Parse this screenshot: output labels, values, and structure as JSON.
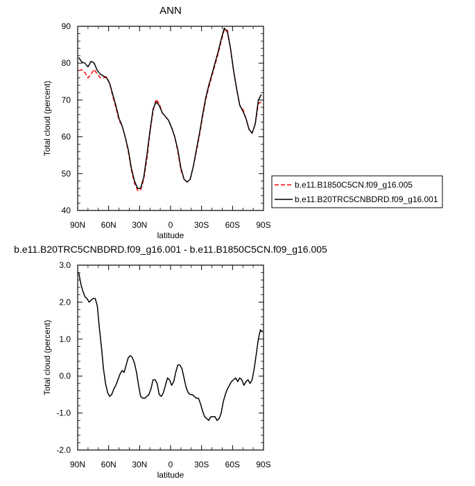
{
  "chart_data": [
    {
      "type": "line",
      "title": "ANN",
      "xlabel": "latitude",
      "ylabel": "Total cloud (percent)",
      "xlim": [
        90,
        -90
      ],
      "ylim": [
        40,
        90
      ],
      "x_tick_values": [
        90,
        60,
        30,
        0,
        -30,
        -60,
        -90
      ],
      "x_tick_labels": [
        "90N",
        "60N",
        "30N",
        "0",
        "30S",
        "60S",
        "90S"
      ],
      "y_tick_values": [
        40,
        50,
        60,
        70,
        80,
        90
      ],
      "y_tick_labels": [
        "40",
        "50",
        "60",
        "70",
        "80",
        "90"
      ],
      "legend_position": "right",
      "series": [
        {
          "name": "b.e11.B1850C5CN.f09_g16.005",
          "color": "#ff0000",
          "dash": "dashed",
          "x": [
            89,
            86,
            83,
            80,
            77,
            74,
            71,
            68,
            65,
            62,
            59,
            56,
            53,
            50,
            47,
            44,
            41,
            38,
            35,
            32,
            29,
            26,
            23,
            20,
            17,
            14,
            11,
            8,
            5,
            2,
            -1,
            -4,
            -7,
            -10,
            -13,
            -16,
            -19,
            -22,
            -25,
            -28,
            -31,
            -34,
            -37,
            -40,
            -43,
            -46,
            -49,
            -52,
            -55,
            -58,
            -61,
            -64,
            -67,
            -70,
            -73,
            -76,
            -79,
            -82,
            -85,
            -88
          ],
          "y": [
            78,
            78.2,
            77.5,
            76,
            77,
            78.3,
            77,
            76,
            76,
            76.3,
            74.5,
            71,
            68,
            64.5,
            63,
            60,
            56,
            51,
            47.5,
            45.5,
            45.5,
            48.5,
            54,
            61,
            67,
            70.2,
            69,
            66.5,
            65.5,
            64.5,
            62.5,
            60,
            56,
            51,
            48.5,
            47.7,
            48.5,
            52,
            56,
            60.5,
            65.5,
            70,
            73.5,
            76.5,
            79.5,
            82.5,
            86,
            89,
            89,
            84,
            78,
            73,
            68.5,
            67.5,
            65,
            62,
            61,
            63.5,
            69,
            69.5
          ]
        },
        {
          "name": "b.e11.B20TRC5CNBDRD.f09_g16.001",
          "color": "#000000",
          "dash": "solid",
          "x": [
            89,
            86,
            83,
            80,
            77,
            74,
            71,
            68,
            65,
            62,
            59,
            56,
            53,
            50,
            47,
            44,
            41,
            38,
            35,
            32,
            29,
            26,
            23,
            20,
            17,
            14,
            11,
            8,
            5,
            2,
            -1,
            -4,
            -7,
            -10,
            -13,
            -16,
            -19,
            -22,
            -25,
            -28,
            -31,
            -34,
            -37,
            -40,
            -43,
            -46,
            -49,
            -52,
            -55,
            -58,
            -61,
            -64,
            -67,
            -70,
            -73,
            -76,
            -79,
            -82,
            -85,
            -88
          ],
          "y": [
            81.5,
            80.3,
            80,
            79,
            80.5,
            80,
            78,
            77,
            76.5,
            76,
            74.5,
            71.5,
            68.5,
            65,
            63,
            60,
            56.5,
            51.5,
            48,
            46,
            46,
            49,
            55,
            61.5,
            67.5,
            69.5,
            68.5,
            66.5,
            65.5,
            64.5,
            62.5,
            60,
            56.5,
            51.5,
            48.5,
            47.7,
            48.5,
            52,
            56.5,
            61,
            66,
            70.5,
            74,
            77,
            80,
            83,
            86.5,
            89.5,
            88.5,
            84,
            78,
            73,
            68.5,
            67,
            65,
            62,
            61,
            63.5,
            70,
            71.5
          ]
        }
      ]
    },
    {
      "type": "line",
      "title": "b.e11.B20TRC5CNBDRD.f09_g16.001 - b.e11.B1850C5CN.f09_g16.005",
      "xlabel": "latitude",
      "ylabel": "Total cloud (percent)",
      "xlim": [
        90,
        -90
      ],
      "ylim": [
        -2.0,
        3.0
      ],
      "x_tick_values": [
        90,
        60,
        30,
        0,
        -30,
        -60,
        -90
      ],
      "x_tick_labels": [
        "90N",
        "60N",
        "30N",
        "0",
        "30S",
        "60S",
        "90S"
      ],
      "y_tick_values": [
        -2,
        -1,
        0,
        1,
        2,
        3
      ],
      "y_tick_labels": [
        "-2.0",
        "-1.0",
        "0.0",
        "1.0",
        "2.0",
        "3.0"
      ],
      "series": [
        {
          "color": "#000000",
          "dash": "solid",
          "x": [
            89,
            87,
            85,
            83,
            81,
            79,
            77,
            75,
            73,
            71,
            69,
            67,
            65,
            63,
            61,
            59,
            57,
            55,
            53,
            51,
            49,
            47,
            45,
            43,
            41,
            39,
            37,
            35,
            33,
            31,
            29,
            27,
            25,
            23,
            21,
            19,
            17,
            15,
            13,
            11,
            9,
            7,
            5,
            3,
            1,
            -1,
            -3,
            -5,
            -7,
            -9,
            -11,
            -13,
            -15,
            -17,
            -19,
            -21,
            -23,
            -25,
            -27,
            -29,
            -31,
            -33,
            -35,
            -37,
            -39,
            -41,
            -43,
            -45,
            -47,
            -49,
            -51,
            -53,
            -55,
            -57,
            -59,
            -61,
            -63,
            -65,
            -67,
            -69,
            -71,
            -73,
            -75,
            -77,
            -79,
            -81,
            -83,
            -85,
            -87,
            -89
          ],
          "y": [
            2.8,
            2.5,
            2.3,
            2.15,
            2.1,
            2.0,
            2.05,
            2.1,
            2.1,
            1.9,
            1.3,
            0.8,
            0.2,
            -0.2,
            -0.45,
            -0.55,
            -0.5,
            -0.35,
            -0.25,
            -0.1,
            0.05,
            0.15,
            0.1,
            0.3,
            0.5,
            0.55,
            0.5,
            0.35,
            0.1,
            -0.25,
            -0.55,
            -0.6,
            -0.6,
            -0.55,
            -0.5,
            -0.35,
            -0.1,
            -0.1,
            -0.2,
            -0.5,
            -0.55,
            -0.45,
            -0.25,
            -0.05,
            -0.1,
            -0.25,
            -0.15,
            0.1,
            0.3,
            0.3,
            0.2,
            -0.05,
            -0.3,
            -0.45,
            -0.5,
            -0.5,
            -0.55,
            -0.6,
            -0.6,
            -0.75,
            -0.95,
            -1.1,
            -1.15,
            -1.2,
            -1.1,
            -1.1,
            -1.1,
            -1.2,
            -1.15,
            -1.0,
            -0.7,
            -0.5,
            -0.35,
            -0.25,
            -0.15,
            -0.1,
            -0.05,
            -0.15,
            -0.05,
            -0.1,
            -0.25,
            -0.15,
            -0.1,
            -0.2,
            -0.1,
            0.2,
            0.6,
            1.0,
            1.25,
            1.2
          ]
        }
      ]
    }
  ]
}
